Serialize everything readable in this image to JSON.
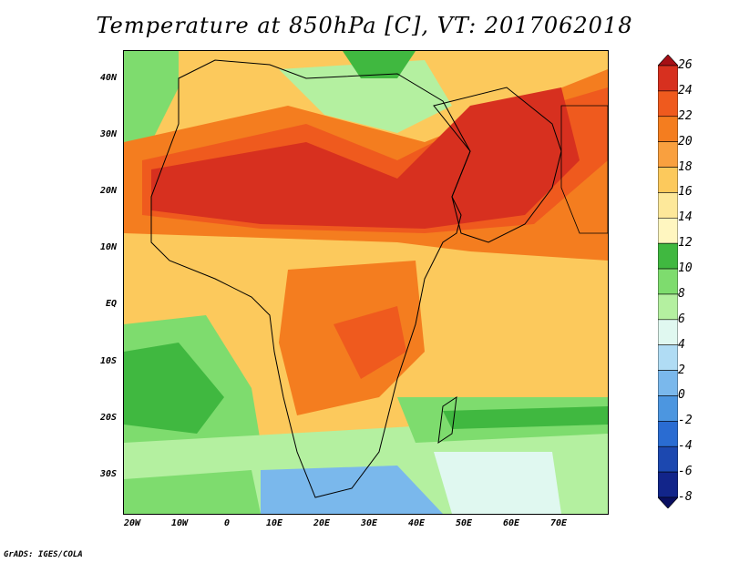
{
  "title": "Temperature at 850hPa [C], VT: 2017062018",
  "credit": "GrADS: IGES/COLA",
  "lat_ticks": [
    "40N",
    "30N",
    "20N",
    "10N",
    "EQ",
    "10S",
    "20S",
    "30S"
  ],
  "lon_ticks": [
    "20W",
    "10W",
    "0",
    "10E",
    "20E",
    "30E",
    "40E",
    "50E",
    "60E",
    "70E"
  ],
  "colorbar": {
    "labels": [
      "26",
      "24",
      "22",
      "20",
      "18",
      "16",
      "14",
      "12",
      "10",
      "8",
      "6",
      "4",
      "2",
      "0",
      "-2",
      "-4",
      "-6",
      "-8"
    ],
    "colors": [
      "#a50f15",
      "#d7301f",
      "#ef5a1e",
      "#f47d1f",
      "#f9a03f",
      "#fcc95c",
      "#fde89a",
      "#fff6c0",
      "#40b840",
      "#7edc6e",
      "#b4f0a0",
      "#e0f8f0",
      "#b0dcf4",
      "#7ab8ec",
      "#4c96e0",
      "#2a6cd2",
      "#1c48b0",
      "#12258a",
      "#0a0f60"
    ]
  }
}
